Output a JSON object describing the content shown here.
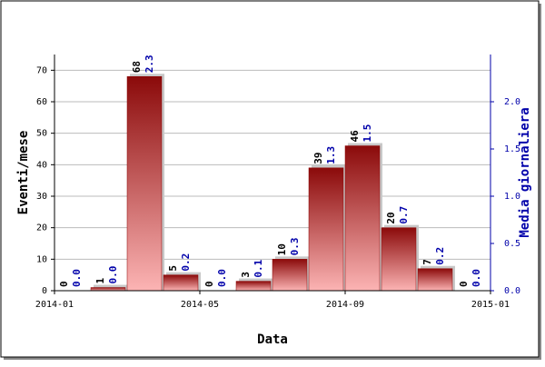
{
  "chart_data": {
    "type": "bar",
    "x_label": "Data",
    "y_label": "Eventi/mese",
    "y2_label": "Media giornaliera",
    "x": [
      0,
      1,
      2,
      3,
      4,
      5,
      6,
      7,
      8,
      9,
      10,
      11
    ],
    "xlim": [
      0,
      12
    ],
    "xticks": [
      {
        "value": 0,
        "label": "2014-01"
      },
      {
        "value": 4,
        "label": "2014-05"
      },
      {
        "value": 8,
        "label": "2014-09"
      },
      {
        "value": 12,
        "label": "2015-01"
      }
    ],
    "ylim": [
      0,
      75
    ],
    "yticks": [
      0,
      10,
      20,
      30,
      40,
      50,
      60,
      70
    ],
    "y2lim": [
      0,
      2.5
    ],
    "y2ticks": [
      {
        "value": 0,
        "label": "0.0"
      },
      {
        "value": 0.5,
        "label": "0.5"
      },
      {
        "value": 1,
        "label": "1.0"
      },
      {
        "value": 1.5,
        "label": "1.5"
      },
      {
        "value": 2,
        "label": "2.0"
      }
    ],
    "grid": true,
    "series": [
      {
        "name": "Eventi/mese",
        "color": "#8b0000",
        "values": [
          0,
          1,
          68,
          5,
          0,
          3,
          10,
          39,
          46,
          20,
          7,
          0
        ]
      },
      {
        "name": "Media giornaliera",
        "color": "#0000aa",
        "axis": "y2",
        "values": [
          0,
          0,
          2.3,
          0.2,
          0,
          0.1,
          0.3,
          1.3,
          1.5,
          0.7,
          0.2,
          0
        ],
        "value_labels": [
          "0.0",
          "0.0",
          "2.3",
          "0.2",
          "0.0",
          "0.1",
          "0.3",
          "1.3",
          "1.5",
          "0.7",
          "0.2",
          "0.0"
        ]
      }
    ]
  }
}
